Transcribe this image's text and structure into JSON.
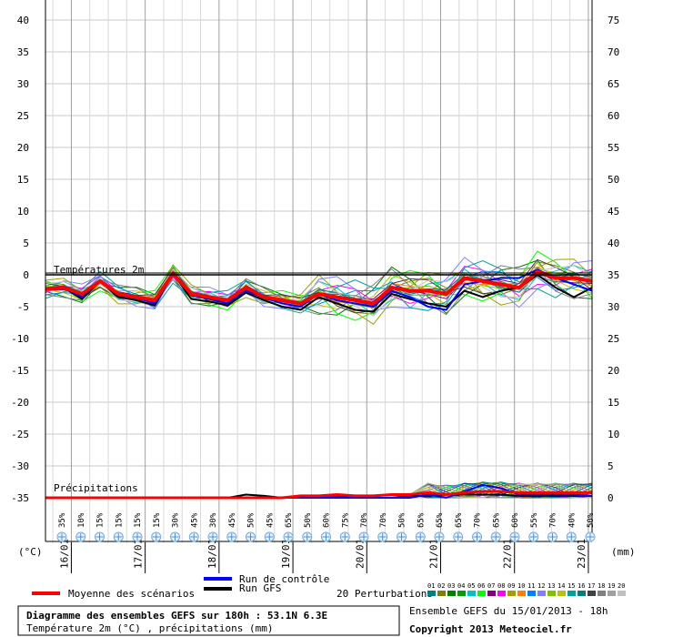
{
  "chart_data": {
    "type": "line",
    "title": "Diagramme des ensembles GEFS sur 180h : 53.1N 6.3E",
    "subtitle": "Température 2m (°C) , précipitations (mm)",
    "section_temp_label": "Températures 2m",
    "section_precip_label": "Précipitations",
    "ylabel_left": "(°C)",
    "ylabel_right": "(mm)",
    "left_ticks": [
      "40",
      "35",
      "30",
      "25",
      "20",
      "15",
      "10",
      "5",
      "0",
      "-5",
      "-10",
      "-15",
      "-20",
      "-25",
      "-30",
      "-35"
    ],
    "right_ticks": [
      "75",
      "70",
      "65",
      "60",
      "55",
      "50",
      "45",
      "40",
      "35",
      "30",
      "25",
      "20",
      "15",
      "10",
      "5",
      "0"
    ],
    "ylim_temp": [
      -35,
      40
    ],
    "ylim_precip": [
      0,
      75
    ],
    "grid": true,
    "date_labels": [
      "16/01",
      "17/01",
      "18/01",
      "19/01",
      "20/01",
      "21/01",
      "22/01",
      "23/01"
    ],
    "snow_probabilities": [
      "35%",
      "10%",
      "15%",
      "15%",
      "15%",
      "15%",
      "30%",
      "45%",
      "30%",
      "45%",
      "50%",
      "45%",
      "65%",
      "50%",
      "60%",
      "75%",
      "70%",
      "70%",
      "50%",
      "65%",
      "65%",
      "65%",
      "70%",
      "65%",
      "60%",
      "55%",
      "70%",
      "40%",
      "50%"
    ],
    "temperature_series": {
      "mean": {
        "name": "Moyenne des scénarios",
        "color": "#ff0000",
        "values": [
          -2.2,
          -2.0,
          -3.0,
          -1.0,
          -3.0,
          -3.5,
          -4.0,
          0.2,
          -3.0,
          -3.5,
          -4.0,
          -2.0,
          -3.5,
          -4.0,
          -4.5,
          -3.0,
          -3.5,
          -4.0,
          -4.5,
          -2.0,
          -2.5,
          -2.5,
          -3.0,
          -0.5,
          -1.0,
          -1.5,
          -2.0,
          0.5,
          -0.5,
          -0.5,
          -1.0
        ]
      },
      "control": {
        "name": "Run de contrôle",
        "color": "#0000ff",
        "values": [
          -2.2,
          -2.0,
          -3.5,
          -1.0,
          -3.2,
          -3.6,
          -4.5,
          0.2,
          -3.2,
          -3.8,
          -4.5,
          -2.5,
          -3.6,
          -4.5,
          -5.0,
          -3.0,
          -4.0,
          -4.5,
          -5.0,
          -2.5,
          -3.5,
          -5.0,
          -5.5,
          -1.5,
          -1.0,
          -0.5,
          -0.5,
          0.8,
          -0.5,
          -1.5,
          -2.5
        ]
      },
      "gfs": {
        "name": "Run GFS",
        "color": "#000000",
        "values": [
          -2.2,
          -2.0,
          -3.8,
          -1.0,
          -3.5,
          -4.0,
          -4.8,
          0.2,
          -3.8,
          -4.2,
          -4.8,
          -2.8,
          -4.0,
          -5.0,
          -5.5,
          -3.5,
          -4.5,
          -5.5,
          -5.8,
          -3.0,
          -3.8,
          -4.5,
          -5.0,
          -2.5,
          -3.5,
          -2.5,
          -2.0,
          0.0,
          -2.0,
          -3.5,
          -2.0
        ]
      }
    },
    "precip_series": {
      "mean": [
        0,
        0,
        0,
        0,
        0,
        0,
        0,
        0,
        0,
        0,
        0,
        0,
        0,
        0,
        0.3,
        0.3,
        0.5,
        0.3,
        0.3,
        0.5,
        0.5,
        0.8,
        0.5,
        0.8,
        1.0,
        1.0,
        0.8,
        0.8,
        0.8,
        0.8,
        0.8
      ],
      "control": [
        0,
        0,
        0,
        0,
        0,
        0,
        0,
        0,
        0,
        0,
        0,
        0,
        0,
        0,
        0,
        0,
        0,
        0,
        0,
        0,
        0,
        0.5,
        0,
        1.0,
        2.0,
        1.5,
        0.5,
        0.5,
        0.5,
        0.5,
        0.3
      ],
      "gfs": [
        0,
        0,
        0,
        0,
        0,
        0,
        0,
        0,
        0,
        0,
        0,
        0.5,
        0.3,
        0,
        0,
        0.3,
        0.3,
        0,
        0,
        0,
        0.3,
        0.3,
        0.5,
        0.5,
        0.5,
        0.5,
        0.3,
        0.3,
        0.3,
        0.3,
        0.3
      ]
    },
    "legend": {
      "mean_label": "Moyenne des scénarios",
      "control_label": "Run de contrôle",
      "gfs_label": "Run GFS",
      "perturb_label": "20 Perturbations",
      "perturb_numbers": [
        "01",
        "02",
        "03",
        "04",
        "05",
        "06",
        "07",
        "08",
        "09",
        "10",
        "11",
        "12",
        "13",
        "14",
        "15",
        "16",
        "17",
        "18",
        "19",
        "20"
      ],
      "perturb_colors": [
        "#008080",
        "#808000",
        "#008000",
        "#00a000",
        "#00c0c0",
        "#00ff00",
        "#800080",
        "#ff00ff",
        "#a0a000",
        "#ff8000",
        "#0080ff",
        "#8080ff",
        "#80c000",
        "#c0c000",
        "#00a0a0",
        "#008080",
        "#404040",
        "#808080",
        "#a0a0a0",
        "#c0c0c0"
      ]
    },
    "info_run": "Ensemble GEFS du 15/01/2013 - 18h",
    "copyright": "Copyright 2013 Meteociel.fr"
  }
}
